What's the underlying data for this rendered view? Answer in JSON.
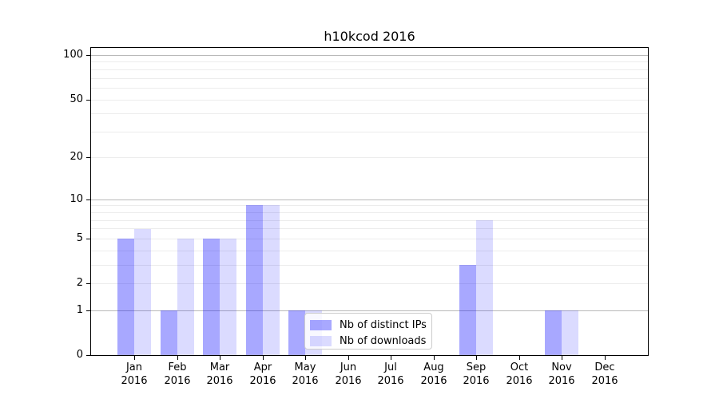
{
  "title": "h10kcod 2016",
  "chart_data": {
    "type": "bar",
    "title": "h10kcod 2016",
    "categories": [
      "Jan 2016",
      "Feb 2016",
      "Mar 2016",
      "Apr 2016",
      "May 2016",
      "Jun 2016",
      "Jul 2016",
      "Aug 2016",
      "Sep 2016",
      "Oct 2016",
      "Nov 2016",
      "Dec 2016"
    ],
    "months": [
      "Jan",
      "Feb",
      "Mar",
      "Apr",
      "May",
      "Jun",
      "Jul",
      "Aug",
      "Sep",
      "Oct",
      "Nov",
      "Dec"
    ],
    "year_label": "2016",
    "series": [
      {
        "name": "Nb of distinct IPs",
        "color": "rgba(0,0,255,0.34)",
        "values": [
          5,
          1,
          5,
          9,
          1,
          0,
          0,
          0,
          3,
          0,
          1,
          0
        ]
      },
      {
        "name": "Nb of downloads",
        "color": "rgba(0,0,255,0.14)",
        "values": [
          6,
          5,
          5,
          9,
          1,
          0,
          0,
          0,
          7,
          0,
          1,
          0
        ]
      }
    ],
    "y_axis": {
      "scale": "log1p",
      "tick_values": [
        0,
        1,
        2,
        5,
        10,
        20,
        50,
        100
      ],
      "tick_labels": [
        "0",
        "1",
        "2",
        "5",
        "10",
        "20",
        "50",
        "100"
      ],
      "ylim": [
        0,
        113
      ],
      "gridlines_decade": [
        1,
        10,
        100
      ],
      "gridlines_minor": [
        2,
        3,
        4,
        5,
        6,
        7,
        8,
        9,
        20,
        30,
        40,
        50,
        60,
        70,
        80,
        90
      ]
    },
    "grid": "horizontal",
    "legend": {
      "position": "inside-lower-center",
      "entries": [
        "Nb of distinct IPs",
        "Nb of downloads"
      ]
    }
  },
  "colors": {
    "background": "#ffffff",
    "spine": "#000000",
    "grid_decade": "#b9b9b9",
    "grid_minor": "#ececec",
    "bar_distinct_ips": "rgba(0,0,255,0.34)",
    "bar_downloads": "rgba(0,0,255,0.14)",
    "legend_border": "#cccccc",
    "legend_bg": "rgba(255,255,255,0.8)"
  }
}
